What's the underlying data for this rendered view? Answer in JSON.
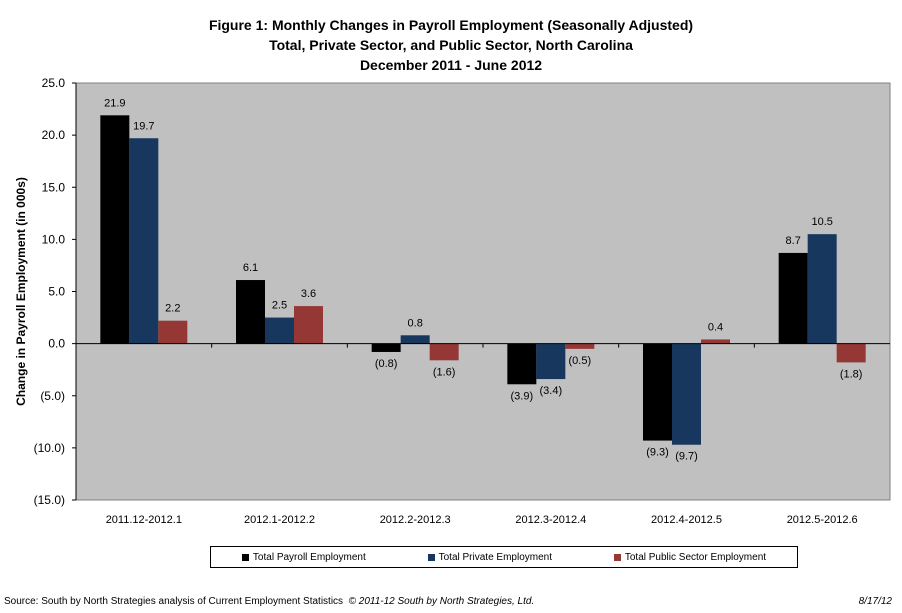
{
  "chart_data": {
    "type": "bar",
    "title": "Figure 1: Monthly Changes in Payroll Employment (Seasonally Adjusted)",
    "subtitle": "Total, Private Sector, and Public Sector, North Carolina",
    "subtitle2": "December 2011 -  June 2012",
    "xlabel": "",
    "ylabel": "Change in Payroll Employment (in 000s)",
    "ylim": [
      -15,
      25
    ],
    "yticks": [
      25,
      20,
      15,
      10,
      5,
      0,
      -5,
      -10,
      -15
    ],
    "ytick_labels": [
      "25.0",
      "20.0",
      "15.0",
      "10.0",
      "5.0",
      "0.0",
      "(5.0)",
      "(10.0)",
      "(15.0)"
    ],
    "categories": [
      "2011.12-2012.1",
      "2012.1-2012.2",
      "2012.2-2012.3",
      "2012.3-2012.4",
      "2012.4-2012.5",
      "2012.5-2012.6"
    ],
    "series": [
      {
        "name": "Total Payroll Employment",
        "color": "#000000",
        "values": [
          21.9,
          6.1,
          -0.8,
          -3.9,
          -9.3,
          8.7
        ],
        "labels": [
          "21.9",
          "6.1",
          "(0.8)",
          "(3.9)",
          "(9.3)",
          "8.7"
        ]
      },
      {
        "name": "Total Private Employment",
        "color": "#17375e",
        "values": [
          19.7,
          2.5,
          0.8,
          -3.4,
          -9.7,
          10.5
        ],
        "labels": [
          "19.7",
          "2.5",
          "0.8",
          "(3.4)",
          "(9.7)",
          "10.5"
        ]
      },
      {
        "name": "Total Public Sector Employment",
        "color": "#953735",
        "values": [
          2.2,
          3.6,
          -1.6,
          -0.5,
          0.4,
          -1.8
        ],
        "labels": [
          "2.2",
          "3.6",
          "(1.6)",
          "(0.5)",
          "0.4",
          "(1.8)"
        ]
      }
    ],
    "plot_background": "#c0c0c0",
    "grid": false,
    "legend_position": "bottom"
  },
  "footer": {
    "source": "Source: South by North Strategies analysis of Current Employment Statistics",
    "copyright": "© 2011-12 South by North Strategies, Ltd.",
    "date": "8/17/12"
  }
}
